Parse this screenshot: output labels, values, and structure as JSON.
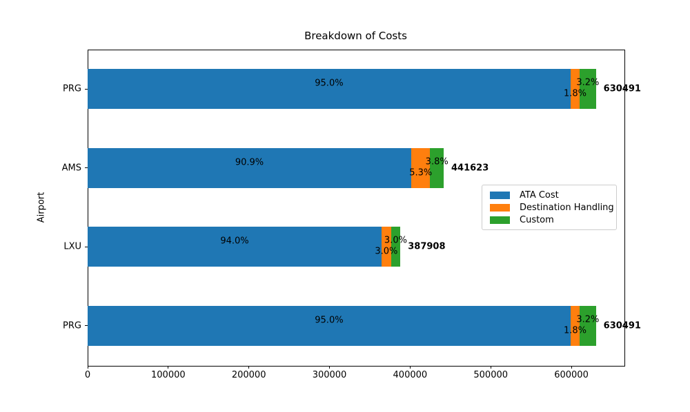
{
  "chart_data": {
    "type": "bar",
    "orientation": "horizontal",
    "stacked": true,
    "title": "Breakdown of Costs",
    "xlabel": "",
    "ylabel": "Airport",
    "categories": [
      "PRG",
      "AMS",
      "LXU",
      "PRG"
    ],
    "series": [
      {
        "name": "ATA Cost",
        "color": "#1f77b4",
        "values": [
          598966,
          401435,
          364634,
          598966
        ],
        "pct_labels": [
          "95.0%",
          "90.9%",
          "94.0%",
          "95.0%"
        ]
      },
      {
        "name": "Destination Handling",
        "color": "#ff7f0e",
        "values": [
          11349,
          23406,
          11637,
          11349
        ],
        "pct_labels": [
          "1.8%",
          "5.3%",
          "3.0%",
          "1.8%"
        ]
      },
      {
        "name": "Custom",
        "color": "#2ca02c",
        "values": [
          20176,
          16782,
          11637,
          20176
        ],
        "pct_labels": [
          "3.2%",
          "3.8%",
          "3.0%",
          "3.2%"
        ]
      }
    ],
    "totals": [
      630491,
      441623,
      387908,
      630491
    ],
    "total_labels": [
      "630491",
      "441623",
      "387908",
      "630491"
    ],
    "xlim": [
      0,
      665000
    ],
    "xticks": [
      0,
      100000,
      200000,
      300000,
      400000,
      500000,
      600000
    ],
    "xtick_labels": [
      "0",
      "100000",
      "200000",
      "300000",
      "400000",
      "500000",
      "600000"
    ],
    "grid": false,
    "legend": {
      "position": "center-right",
      "entries": [
        "ATA Cost",
        "Destination Handling",
        "Custom"
      ]
    }
  }
}
